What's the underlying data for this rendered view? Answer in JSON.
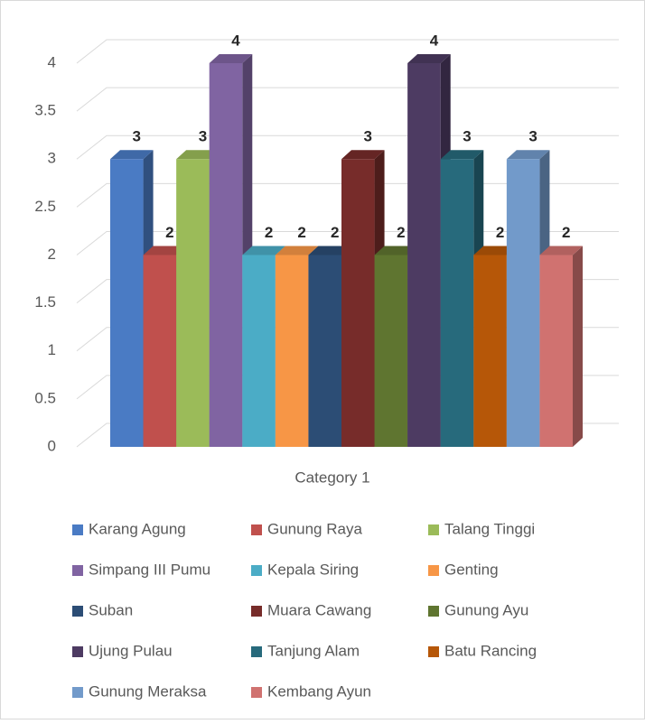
{
  "chart_data": {
    "type": "bar3d",
    "categories": [
      "Category 1"
    ],
    "series": [
      {
        "name": "Karang Agung",
        "color": "#4a7bc4",
        "values": [
          3
        ]
      },
      {
        "name": "Gunung Raya",
        "color": "#c0504d",
        "values": [
          2
        ]
      },
      {
        "name": "Talang Tinggi",
        "color": "#9bbb59",
        "values": [
          3
        ]
      },
      {
        "name": "Simpang III Pumu",
        "color": "#8064a2",
        "values": [
          4
        ]
      },
      {
        "name": "Kepala Siring",
        "color": "#4bacc6",
        "values": [
          2
        ]
      },
      {
        "name": "Genting",
        "color": "#f79646",
        "values": [
          2
        ]
      },
      {
        "name": "Suban",
        "color": "#2c4d75",
        "values": [
          2
        ]
      },
      {
        "name": "Muara Cawang",
        "color": "#772c2a",
        "values": [
          3
        ]
      },
      {
        "name": "Gunung Ayu",
        "color": "#5f7530",
        "values": [
          2
        ]
      },
      {
        "name": "Ujung Pulau",
        "color": "#4d3b62",
        "values": [
          4
        ]
      },
      {
        "name": "Tanjung Alam",
        "color": "#276a7c",
        "values": [
          3
        ]
      },
      {
        "name": "Batu Rancing",
        "color": "#b65708",
        "values": [
          2
        ]
      },
      {
        "name": "Gunung Meraksa",
        "color": "#729aca",
        "values": [
          3
        ]
      },
      {
        "name": "Kembang Ayun",
        "color": "#d07270",
        "values": [
          2
        ]
      }
    ],
    "ylim": [
      0,
      4
    ],
    "yticks": [
      0,
      0.5,
      1,
      1.5,
      2,
      2.5,
      3,
      3.5,
      4
    ],
    "grid": true,
    "legend": "bottom"
  }
}
